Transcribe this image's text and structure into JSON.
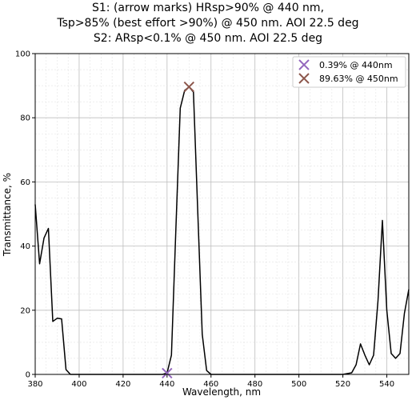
{
  "chart_data": {
    "type": "line",
    "title_lines": [
      "S1: (arrow marks) HRsp>90% @ 440 nm,",
      "Tsp>85% (best effort >90%) @ 450 nm. AOI 22.5 deg",
      "S2: ARsp<0.1% @ 450 nm. AOI 22.5 deg"
    ],
    "xlabel": "Wavelength, nm",
    "ylabel": "Transmittance, %",
    "xlim": [
      380,
      550
    ],
    "ylim": [
      0,
      100
    ],
    "xticks": [
      380,
      400,
      420,
      440,
      460,
      480,
      500,
      520,
      540
    ],
    "yticks": [
      0,
      20,
      40,
      60,
      80,
      100
    ],
    "grid": true,
    "legend_position": "top-right",
    "series": [
      {
        "color": "#000000",
        "x": [
          380,
          382,
          384,
          386,
          388,
          390,
          392,
          394,
          396,
          398,
          400,
          420,
          436,
          438,
          440,
          442,
          444,
          446,
          448,
          450,
          452,
          454,
          456,
          458,
          460,
          480,
          500,
          520,
          524,
          526,
          528,
          530,
          532,
          534,
          536,
          538,
          540,
          542,
          544,
          546,
          548,
          550
        ],
        "y": [
          53,
          34.5,
          42.5,
          45.5,
          16.5,
          17.5,
          17.3,
          1.5,
          0,
          0,
          0,
          0,
          0,
          0,
          0.39,
          6,
          45,
          83,
          88.5,
          89.63,
          88,
          50,
          12.5,
          1.2,
          0,
          0,
          0,
          0,
          0.5,
          3,
          9.5,
          6,
          3,
          6,
          23,
          48,
          20,
          6.5,
          5,
          6.5,
          19,
          26.5
        ]
      }
    ],
    "markers": [
      {
        "label": "0.39% @ 440nm",
        "x": 440,
        "y": 0.39,
        "color": "#9467bd",
        "symbol": "x"
      },
      {
        "label": "89.63% @ 450nm",
        "x": 450,
        "y": 89.63,
        "color": "#8c564b",
        "symbol": "x"
      }
    ]
  }
}
